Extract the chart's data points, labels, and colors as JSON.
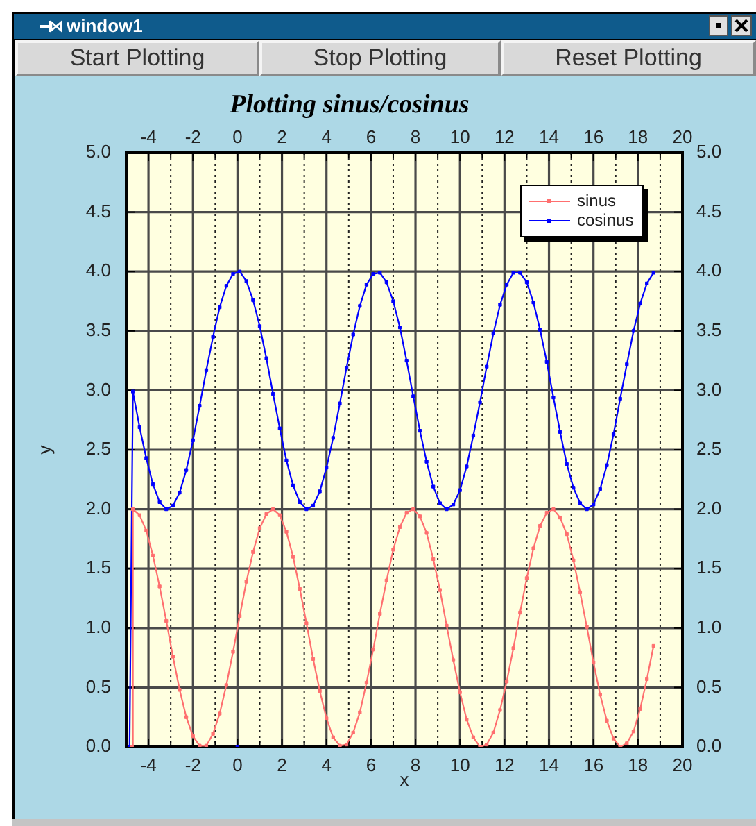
{
  "chart_data": {
    "type": "line",
    "title": "Plotting sinus/cosinus",
    "xlabel": "x",
    "ylabel": "y",
    "annotations": [
      "window1",
      "Start Plotting",
      "Stop Plotting",
      "Reset Plotting"
    ],
    "xlim": [
      -5,
      20
    ],
    "xticks": [
      -4,
      {
        "value": -3,
        "label": null
      },
      -2,
      {
        "value": -1,
        "label": null
      },
      0,
      {
        "value": 1,
        "label": null
      },
      2,
      {
        "value": 3,
        "label": null
      },
      4,
      {
        "value": 5,
        "label": null
      },
      6,
      {
        "value": 7,
        "label": null
      },
      8,
      {
        "value": 9,
        "label": null
      },
      10,
      {
        "value": 11,
        "label": null
      },
      12,
      {
        "value": 13,
        "label": null
      },
      14,
      {
        "value": 15,
        "label": null
      },
      16,
      {
        "value": 17,
        "label": null
      },
      18,
      {
        "value": 19,
        "label": null
      },
      20
    ],
    "x2lim": [
      -5,
      20
    ],
    "x2ticks": [
      -4,
      {
        "value": -3,
        "label": null
      },
      -2,
      {
        "value": -1,
        "label": null
      },
      0,
      {
        "value": 1,
        "label": null
      },
      2,
      {
        "value": 3,
        "label": null
      },
      4,
      {
        "value": 5,
        "label": null
      },
      6,
      {
        "value": 7,
        "label": null
      },
      8,
      {
        "value": 9,
        "label": null
      },
      10,
      {
        "value": 11,
        "label": null
      },
      12,
      {
        "value": 13,
        "label": null
      },
      14,
      {
        "value": 15,
        "label": null
      },
      16,
      {
        "value": 17,
        "label": null
      },
      18,
      {
        "value": 19,
        "label": null
      },
      20
    ],
    "ylim": [
      0,
      5
    ],
    "yticks": [
      {
        "value": 0,
        "label": "0.0"
      },
      0.5,
      {
        "value": 1,
        "label": "1.0"
      },
      1.5,
      {
        "value": 2,
        "label": "2.0"
      },
      2.5,
      {
        "value": 3,
        "label": "3.0"
      },
      3.5,
      {
        "value": 4,
        "label": "4.0"
      },
      4.5,
      {
        "value": 5,
        "label": "5.0"
      }
    ],
    "y2lim": [
      0,
      5
    ],
    "y2ticks": [
      {
        "value": 0,
        "label": "0.0"
      },
      0.5,
      {
        "value": 1,
        "label": "1.0"
      },
      1.5,
      {
        "value": 2,
        "label": "2.0"
      },
      2.5,
      {
        "value": 3,
        "label": "3.0"
      },
      3.5,
      {
        "value": 4,
        "label": "4.0"
      },
      4.5,
      {
        "value": 5,
        "label": "5.0"
      }
    ],
    "grid": true,
    "legend": "top right",
    "marker": "square",
    "series": [
      {
        "name": "sinus",
        "color": "#ff6f6f",
        "x": [
          -4.75,
          -4.7,
          -4.4,
          -4.1,
          -3.8,
          -3.5,
          -3.2,
          -2.9,
          -2.6,
          -2.3,
          -2,
          -1.7,
          -1.4,
          -1.1,
          -0.8,
          -0.5,
          -0.2,
          0.1,
          0.4,
          0.7,
          1,
          1.3,
          1.6,
          1.9,
          2.2,
          2.5,
          2.8,
          3.1,
          3.4,
          3.7,
          4,
          4.3,
          4.6,
          4.9,
          5.2,
          5.5,
          5.8,
          6.1,
          6.4,
          6.7,
          7,
          7.3,
          7.6,
          7.9,
          8.2,
          8.5,
          8.8,
          9.1,
          9.4,
          9.7,
          10,
          10.3,
          10.6,
          10.9,
          11.2,
          11.5,
          11.8,
          12.1,
          12.4,
          12.7,
          13,
          13.3,
          13.6,
          13.9,
          14.2,
          14.5,
          14.8,
          15.1,
          15.4,
          15.7,
          16,
          16.3,
          16.6,
          16.9,
          17.2,
          17.5,
          17.8,
          18.1,
          18.4,
          18.7
        ],
        "values": [
          0,
          2,
          1.95,
          1.82,
          1.61,
          1.35,
          1.06,
          0.76,
          0.48,
          0.25,
          0.09,
          0.01,
          0.01,
          0.11,
          0.28,
          0.52,
          0.8,
          1.1,
          1.39,
          1.64,
          1.84,
          1.96,
          2,
          1.95,
          1.81,
          1.6,
          1.33,
          1.04,
          0.74,
          0.47,
          0.24,
          0.08,
          0.01,
          0.02,
          0.12,
          0.29,
          0.54,
          0.82,
          1.12,
          1.4,
          1.66,
          1.85,
          1.97,
          2,
          1.94,
          1.8,
          1.58,
          1.32,
          1.02,
          0.73,
          0.46,
          0.23,
          0.08,
          0,
          0.02,
          0.12,
          0.31,
          0.55,
          0.83,
          1.13,
          1.42,
          1.67,
          1.86,
          1.97,
          2,
          1.93,
          1.79,
          1.57,
          1.3,
          1.01,
          0.71,
          0.44,
          0.22,
          0.07,
          0,
          0.03,
          0.13,
          0.32,
          0.57,
          0.85
        ]
      },
      {
        "name": "cosinus",
        "color": "#0000ff",
        "x": [
          -4.85,
          -4.7,
          -4.4,
          -4.1,
          -3.8,
          -3.5,
          -3.2,
          -2.9,
          -2.6,
          -2.3,
          -2,
          -1.7,
          -1.4,
          -1.1,
          -0.8,
          -0.5,
          -0.2,
          0.1,
          0.4,
          0.7,
          1,
          1.3,
          1.6,
          1.9,
          2.2,
          2.5,
          2.8,
          3.1,
          3.4,
          3.7,
          4,
          4.3,
          4.6,
          4.9,
          5.2,
          5.5,
          5.8,
          6.1,
          6.4,
          6.7,
          7,
          7.3,
          7.6,
          7.9,
          8.2,
          8.5,
          8.8,
          9.1,
          9.4,
          9.7,
          10,
          10.3,
          10.6,
          10.9,
          11.2,
          11.5,
          11.8,
          12.1,
          12.4,
          12.7,
          13,
          13.3,
          13.6,
          13.9,
          14.2,
          14.5,
          14.8,
          15.1,
          15.4,
          15.7,
          16,
          16.3,
          16.6,
          16.9,
          17.2,
          17.5,
          17.8,
          18.1,
          18.4,
          18.7
        ],
        "values": [
          0,
          2.99,
          2.69,
          2.43,
          2.21,
          2.06,
          2,
          2.03,
          2.14,
          2.33,
          2.58,
          2.87,
          3.17,
          3.45,
          3.7,
          3.88,
          3.98,
          4,
          3.92,
          3.76,
          3.54,
          3.27,
          2.97,
          2.68,
          2.41,
          2.2,
          2.06,
          2,
          2.03,
          2.15,
          2.35,
          2.6,
          2.89,
          3.19,
          3.47,
          3.71,
          3.89,
          3.98,
          3.99,
          3.91,
          3.75,
          3.53,
          3.25,
          2.95,
          2.66,
          2.4,
          2.19,
          2.05,
          2,
          2.04,
          2.16,
          2.36,
          2.62,
          2.9,
          3.2,
          3.48,
          3.72,
          3.89,
          3.99,
          3.99,
          3.91,
          3.74,
          3.51,
          3.24,
          2.94,
          2.65,
          2.38,
          2.18,
          2.05,
          2,
          2.04,
          2.17,
          2.37,
          2.63,
          2.93,
          3.22,
          3.5,
          3.73,
          3.9,
          3.99
        ]
      },
      {
        "type": "scatter",
        "color": "#0000ff",
        "x": [
          0
        ],
        "values": [
          0
        ]
      }
    ]
  }
}
